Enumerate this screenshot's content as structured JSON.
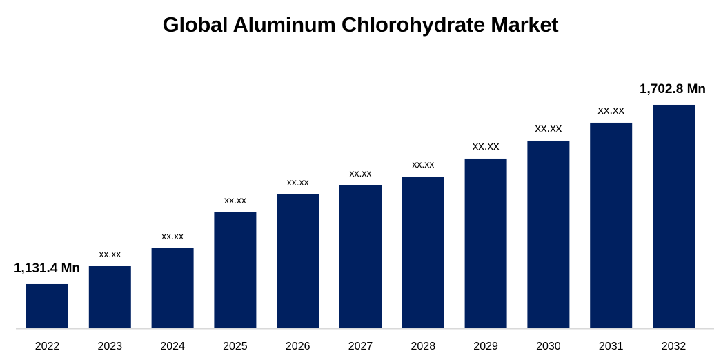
{
  "chart_data": {
    "type": "bar",
    "title": "Global Aluminum Chlorohydrate Market",
    "xlabel": "",
    "ylabel": "",
    "categories": [
      "2022",
      "2023",
      "2024",
      "2025",
      "2026",
      "2027",
      "2028",
      "2029",
      "2030",
      "2031",
      "2032"
    ],
    "values": [
      1131.4,
      1188.5,
      1245.7,
      1360.0,
      1417.1,
      1445.7,
      1474.2,
      1531.4,
      1588.5,
      1645.7,
      1702.8
    ],
    "data_labels": [
      "1,131.4 Mn",
      "xx.xx",
      "xx.xx",
      "xx.xx",
      "xx.xx",
      "xx.xx",
      "xx.xx",
      "xx.xx",
      "xx.xx",
      "xx.xx",
      "1,702.8 Mn"
    ],
    "ylim": [
      990.7,
      1720
    ],
    "grid": false,
    "legend": "none",
    "bar_color": "#002060",
    "axis_color": "#d9d9d9"
  }
}
